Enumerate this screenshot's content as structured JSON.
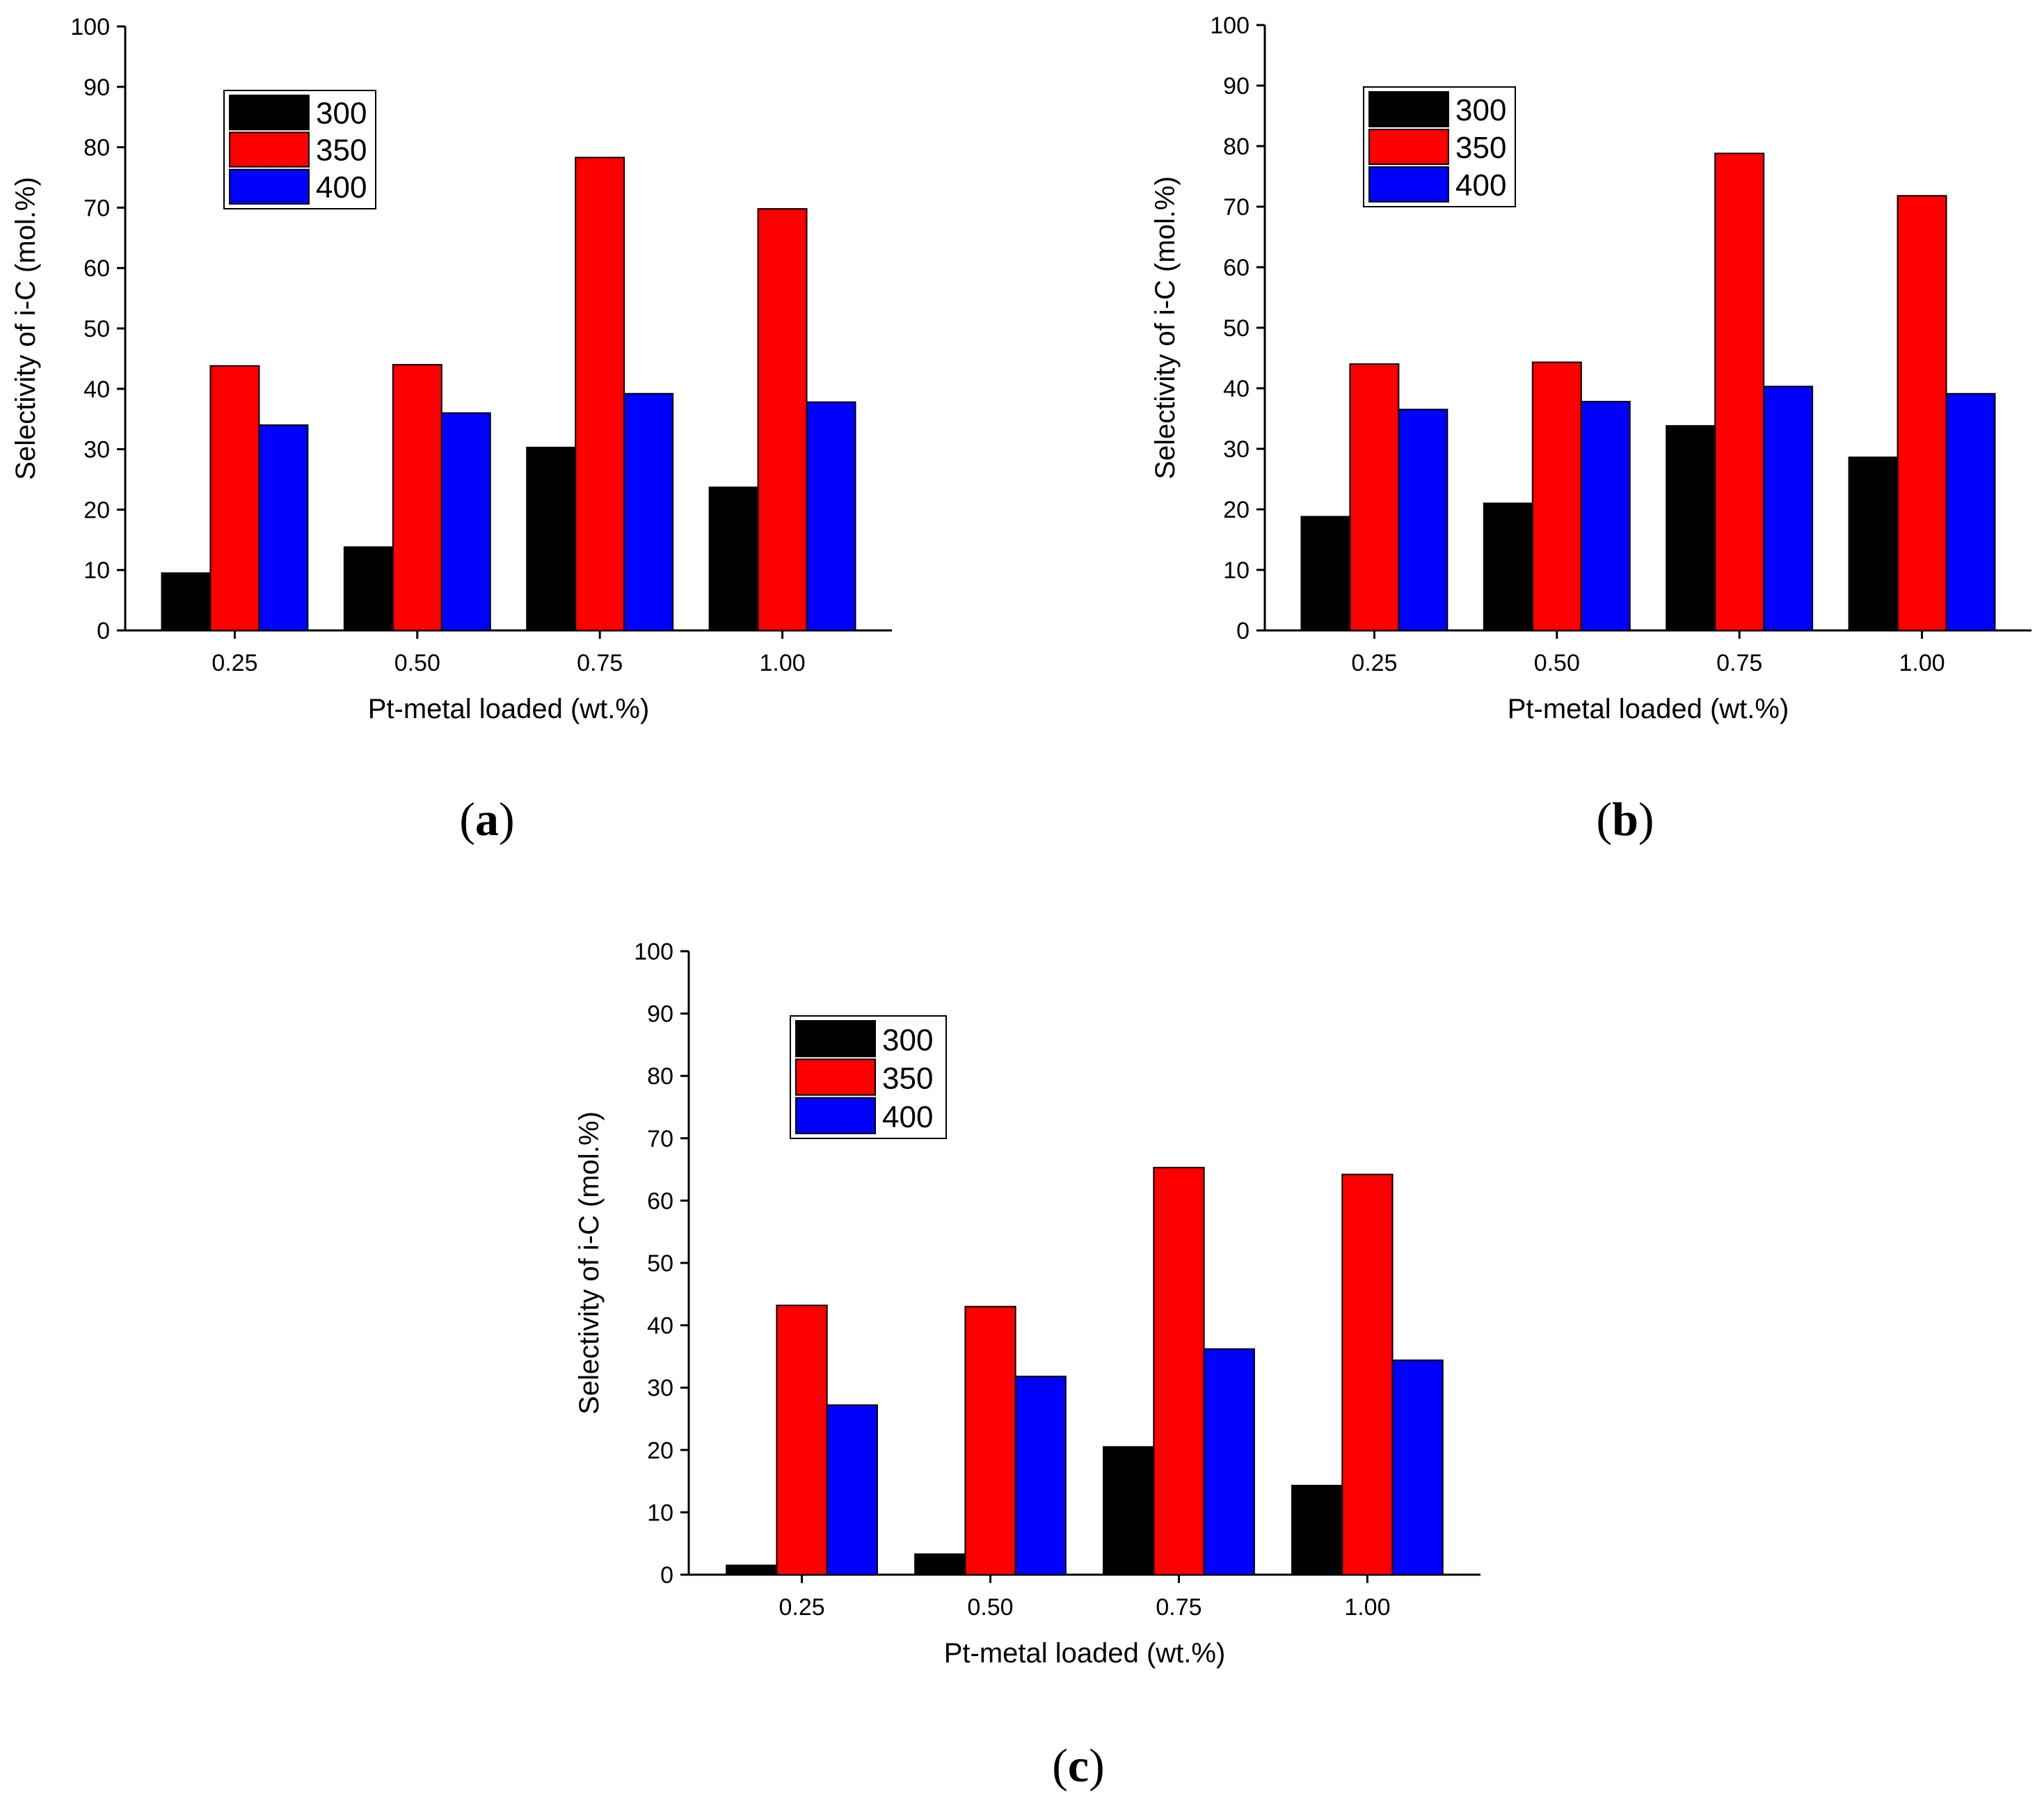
{
  "chart_data": [
    {
      "panel": "a",
      "caption_letter": "a",
      "type": "bar",
      "categories": [
        "0.25",
        "0.50",
        "0.75",
        "1.00"
      ],
      "series": [
        {
          "name": "300",
          "color": "#000000",
          "values": [
            9.5,
            13.8,
            30.3,
            23.7
          ]
        },
        {
          "name": "350",
          "color": "#ff0000",
          "values": [
            43.8,
            44.0,
            78.3,
            69.8
          ]
        },
        {
          "name": "400",
          "color": "#0000ff",
          "values": [
            34.0,
            36.0,
            39.2,
            37.8
          ]
        }
      ],
      "xlabel": "Pt-metal loaded (wt.%)",
      "ylabel": "Selectivity of i-C (mol.%)",
      "ylim": [
        0,
        100
      ],
      "yticks": [
        "0",
        "10",
        "20",
        "30",
        "40",
        "50",
        "60",
        "70",
        "80",
        "90",
        "100"
      ],
      "legend_position": "top-left"
    },
    {
      "panel": "b",
      "caption_letter": "b",
      "type": "bar",
      "categories": [
        "0.25",
        "0.50",
        "0.75",
        "1.00"
      ],
      "series": [
        {
          "name": "300",
          "color": "#000000",
          "values": [
            18.8,
            21.0,
            33.8,
            28.6
          ]
        },
        {
          "name": "350",
          "color": "#ff0000",
          "values": [
            44.0,
            44.3,
            78.8,
            71.8
          ]
        },
        {
          "name": "400",
          "color": "#0000ff",
          "values": [
            36.5,
            37.8,
            40.3,
            39.1
          ]
        }
      ],
      "xlabel": "Pt-metal loaded (wt.%)",
      "ylabel": "Selectivity of i-C (mol.%)",
      "ylim": [
        0,
        100
      ],
      "yticks": [
        "0",
        "10",
        "20",
        "30",
        "40",
        "50",
        "60",
        "70",
        "80",
        "90",
        "100"
      ],
      "legend_position": "top-left"
    },
    {
      "panel": "c",
      "caption_letter": "c",
      "type": "bar",
      "categories": [
        "0.25",
        "0.50",
        "0.75",
        "1.00"
      ],
      "series": [
        {
          "name": "300",
          "color": "#000000",
          "values": [
            1.5,
            3.3,
            20.5,
            14.3
          ]
        },
        {
          "name": "350",
          "color": "#ff0000",
          "values": [
            43.2,
            43.0,
            65.3,
            64.2
          ]
        },
        {
          "name": "400",
          "color": "#0000ff",
          "values": [
            27.2,
            31.8,
            36.2,
            34.4
          ]
        }
      ],
      "xlabel": "Pt-metal loaded (wt.%)",
      "ylabel": "Selectivity of i-C (mol.%)",
      "ylim": [
        0,
        100
      ],
      "yticks": [
        "0",
        "10",
        "20",
        "30",
        "40",
        "50",
        "60",
        "70",
        "80",
        "90",
        "100"
      ],
      "legend_position": "top-left"
    }
  ]
}
